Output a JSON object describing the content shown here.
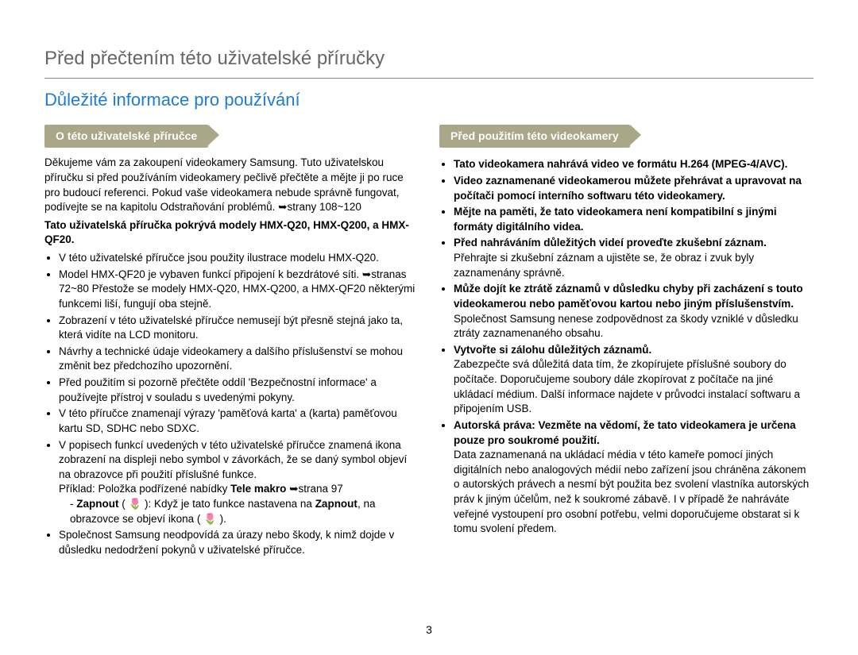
{
  "page": {
    "mainHeading": "Před přečtením této uživatelské příručky",
    "subHeading": "Důležité informace pro používání",
    "pageNumber": "3"
  },
  "left": {
    "tag": "O této uživatelské příručce",
    "intro": "Děkujeme vám za zakoupení videokamery Samsung. Tuto uživatelskou příručku si před používáním videokamery pečlivě přečtěte a mějte ji po ruce pro budoucí referenci. Pokud vaše videokamera nebude správně fungovat, podívejte se na kapitolu Odstraňování problémů. ➥strany 108~120",
    "boldPara": "Tato uživatelská příručka pokrývá modely HMX-Q20, HMX-Q200, a HMX-QF20.",
    "items": [
      "V této uživatelské příručce jsou použity ilustrace modelu HMX-Q20.",
      "Model HMX-QF20 je vybaven funkcí připojení k bezdrátové síti. ➥stranas 72~80\nPřestože se modely HMX-Q20, HMX-Q200, a HMX-QF20 některými funkcemi liší, fungují oba stejně.",
      "Zobrazení v této uživatelské příručce nemusejí být přesně stejná jako ta, která vidíte na LCD monitoru.",
      "Návrhy a technické údaje videokamery a dalšího příslušenství se mohou změnit bez předchozího upozornění.",
      "Před použitím si pozorně přečtěte oddíl 'Bezpečnostní informace' a používejte přístroj v souladu s uvedenými pokyny.",
      "V této příručce znamenají výrazy 'paměťová karta' a (karta) paměťovou kartu SD, SDHC nebo SDXC.",
      "V popisech funkcí uvedených v této uživatelské příručce znamená ikona zobrazení na displeji nebo symbol v závorkách, že se daný symbol objeví na obrazovce při použití příslušné funkce.",
      "Společnost Samsung neodpovídá za úrazy nebo škody, k nimž dojde v důsledku nedodržení pokynů v uživatelské příručce."
    ],
    "exampleLine": "Příklad: Položka podřízené nabídky ",
    "exampleBold": "Tele makro",
    "exampleRef": " ➥strana 97",
    "nested": "Zapnout ( 🌷 ): Když je tato funkce nastavena na Zapnout, na obrazovce se objeví ikona ( 🌷 )."
  },
  "right": {
    "tag": "Před použitím této videokamery",
    "items": [
      {
        "bold": "Tato videokamera nahrává video ve formátu H.264 (MPEG-4/AVC).",
        "text": ""
      },
      {
        "bold": "Video zaznamenané videokamerou můžete přehrávat a upravovat na počítači pomocí interního softwaru této videokamery.",
        "text": ""
      },
      {
        "bold": "Mějte na paměti, že tato videokamera není kompatibilní s jinými formáty digitálního videa.",
        "text": ""
      },
      {
        "bold": "Před nahráváním důležitých videí proveďte zkušební záznam.",
        "text": "Přehrajte si zkušební záznam a ujistěte se, že obraz i zvuk byly zaznamenány správně."
      },
      {
        "bold": "Může dojít ke ztrátě záznamů v důsledku chyby při zacházení s touto videokamerou nebo paměťovou kartou nebo jiným příslušenstvím.",
        "text": "Společnost Samsung nenese zodpovědnost za škody vzniklé v důsledku ztráty zaznamenaného obsahu."
      },
      {
        "bold": "Vytvořte si zálohu důležitých záznamů.",
        "text": "Zabezpečte svá důležitá data tím, že zkopírujete příslušné soubory do počítače. Doporučujeme soubory dále zkopírovat z počítače na jiné ukládací médium. Další informace najdete v průvodci instalací softwaru a připojením USB."
      },
      {
        "bold": "Autorská práva: Vezměte na vědomí, že tato videokamera je určena pouze pro soukromé použití.",
        "text": "Data zaznamenaná na ukládací média v této kameře pomocí jiných digitálních nebo analogových médií nebo zařízení jsou chráněna zákonem o autorských právech a nesmí být použita bez svolení vlastníka autorských práv k jiným účelům, než k soukromé zábavě. I v případě že nahráváte veřejné vystoupení pro osobní potřebu, velmi doporučujeme obstarat si k tomu svolení předem."
      }
    ]
  },
  "colors": {
    "mainHeading": "#666666",
    "subHeading": "#1e7bd8",
    "tagBg": "#a9a788",
    "tagText": "#ffffff",
    "bodyText": "#000000"
  }
}
